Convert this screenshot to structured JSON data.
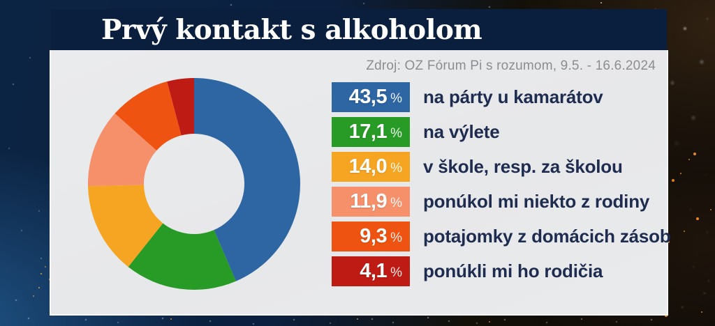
{
  "title": "Prvý kontakt s alkoholom",
  "source": "Zdroj: OZ Fórum Pi s rozumom, 9.5. - 16.6.2024",
  "percent_sign": "%",
  "chart_data": {
    "type": "pie",
    "donut": true,
    "title": "Prvý kontakt s alkoholom",
    "start_angle_deg": 0,
    "direction": "clockwise",
    "inner_radius_ratio": 0.47,
    "legend_position": "right",
    "categories": [
      "na párty u kamarátov",
      "na výlete",
      "v škole, resp. za školou",
      "ponúkol mi niekto z rodiny",
      "potajomky z domácich zásob",
      "ponúkli mi ho rodičia"
    ],
    "values": [
      43.5,
      17.1,
      14.0,
      11.9,
      9.3,
      4.1
    ],
    "value_labels": [
      "43,5",
      "17,1",
      "14,0",
      "11,9",
      "9,3",
      "4,1"
    ],
    "colors": [
      "#2d66a3",
      "#279b26",
      "#f6a522",
      "#f5906b",
      "#ee5311",
      "#bd1b14"
    ]
  }
}
